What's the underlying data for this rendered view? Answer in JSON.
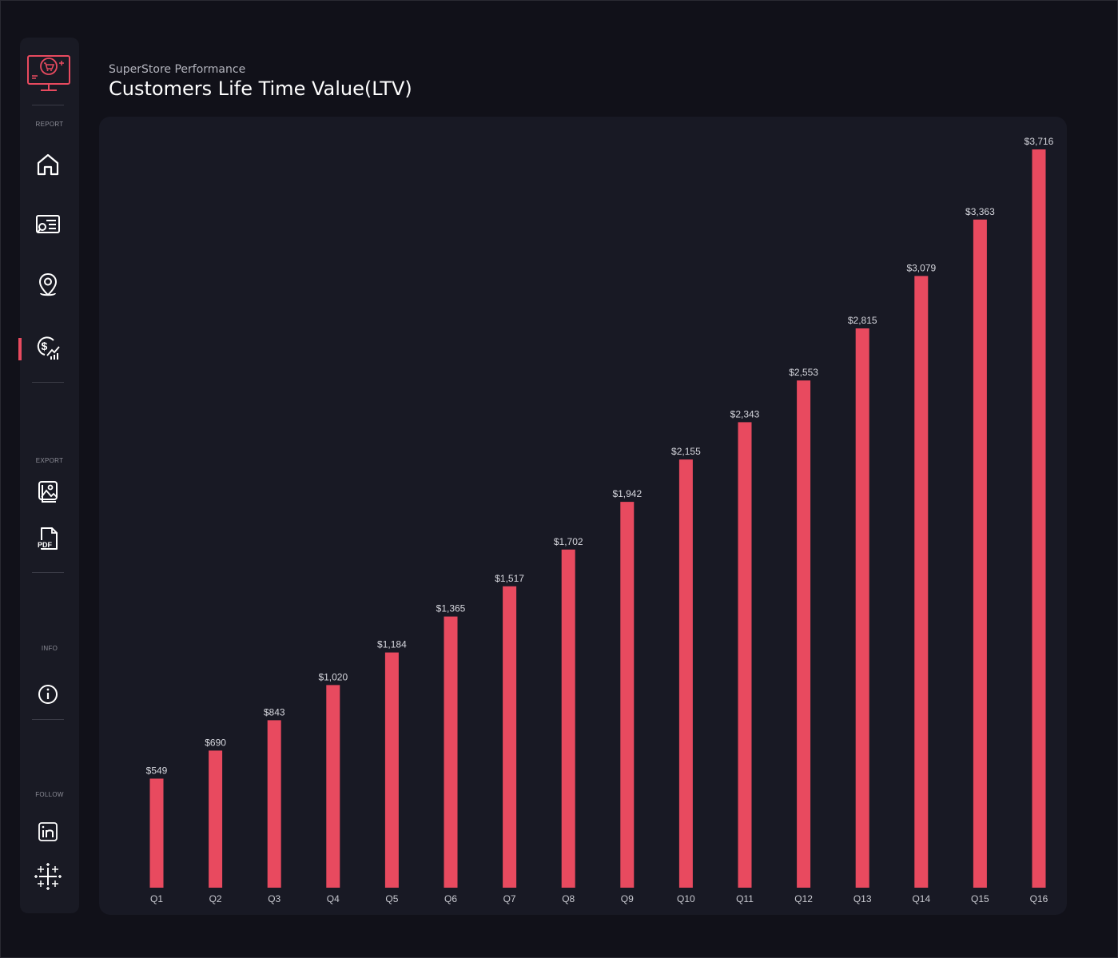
{
  "header": {
    "subtitle": "SuperStore Performance",
    "title": "Customers Life Time Value(LTV)"
  },
  "sidebar": {
    "sections": {
      "report": "REPORT",
      "export": "EXPORT",
      "info": "INFO",
      "follow": "FOLLOW"
    },
    "report_items": [
      "home-icon",
      "report-search-icon",
      "location-pin-icon",
      "dollar-chart-icon"
    ],
    "export_items": [
      "image-export-icon",
      "pdf-export-icon"
    ],
    "info_items": [
      "info-icon"
    ],
    "follow_items": [
      "linkedin-icon",
      "tableau-icon"
    ],
    "active_item": "dollar-chart-icon"
  },
  "colors": {
    "background": "#111119",
    "card": "#181924",
    "bar": "#e84a5f",
    "accent": "#e84a5f"
  },
  "chart_data": {
    "type": "bar",
    "title": "Customers Life Time Value(LTV)",
    "categories": [
      "Q1",
      "Q2",
      "Q3",
      "Q4",
      "Q5",
      "Q6",
      "Q7",
      "Q8",
      "Q9",
      "Q10",
      "Q11",
      "Q12",
      "Q13",
      "Q14",
      "Q15",
      "Q16"
    ],
    "values": [
      549,
      690,
      843,
      1020,
      1184,
      1365,
      1517,
      1702,
      1942,
      2155,
      2343,
      2553,
      2815,
      3079,
      3363,
      3716
    ],
    "data_labels": [
      "$549",
      "$690",
      "$843",
      "$1,020",
      "$1,184",
      "$1,365",
      "$1,517",
      "$1,702",
      "$1,942",
      "$2,155",
      "$2,343",
      "$2,553",
      "$2,815",
      "$3,079",
      "$3,363",
      "$3,716"
    ],
    "xlabel": "",
    "ylabel": "",
    "ylim": [
      0,
      3716
    ],
    "grid": false,
    "legend": "none"
  }
}
